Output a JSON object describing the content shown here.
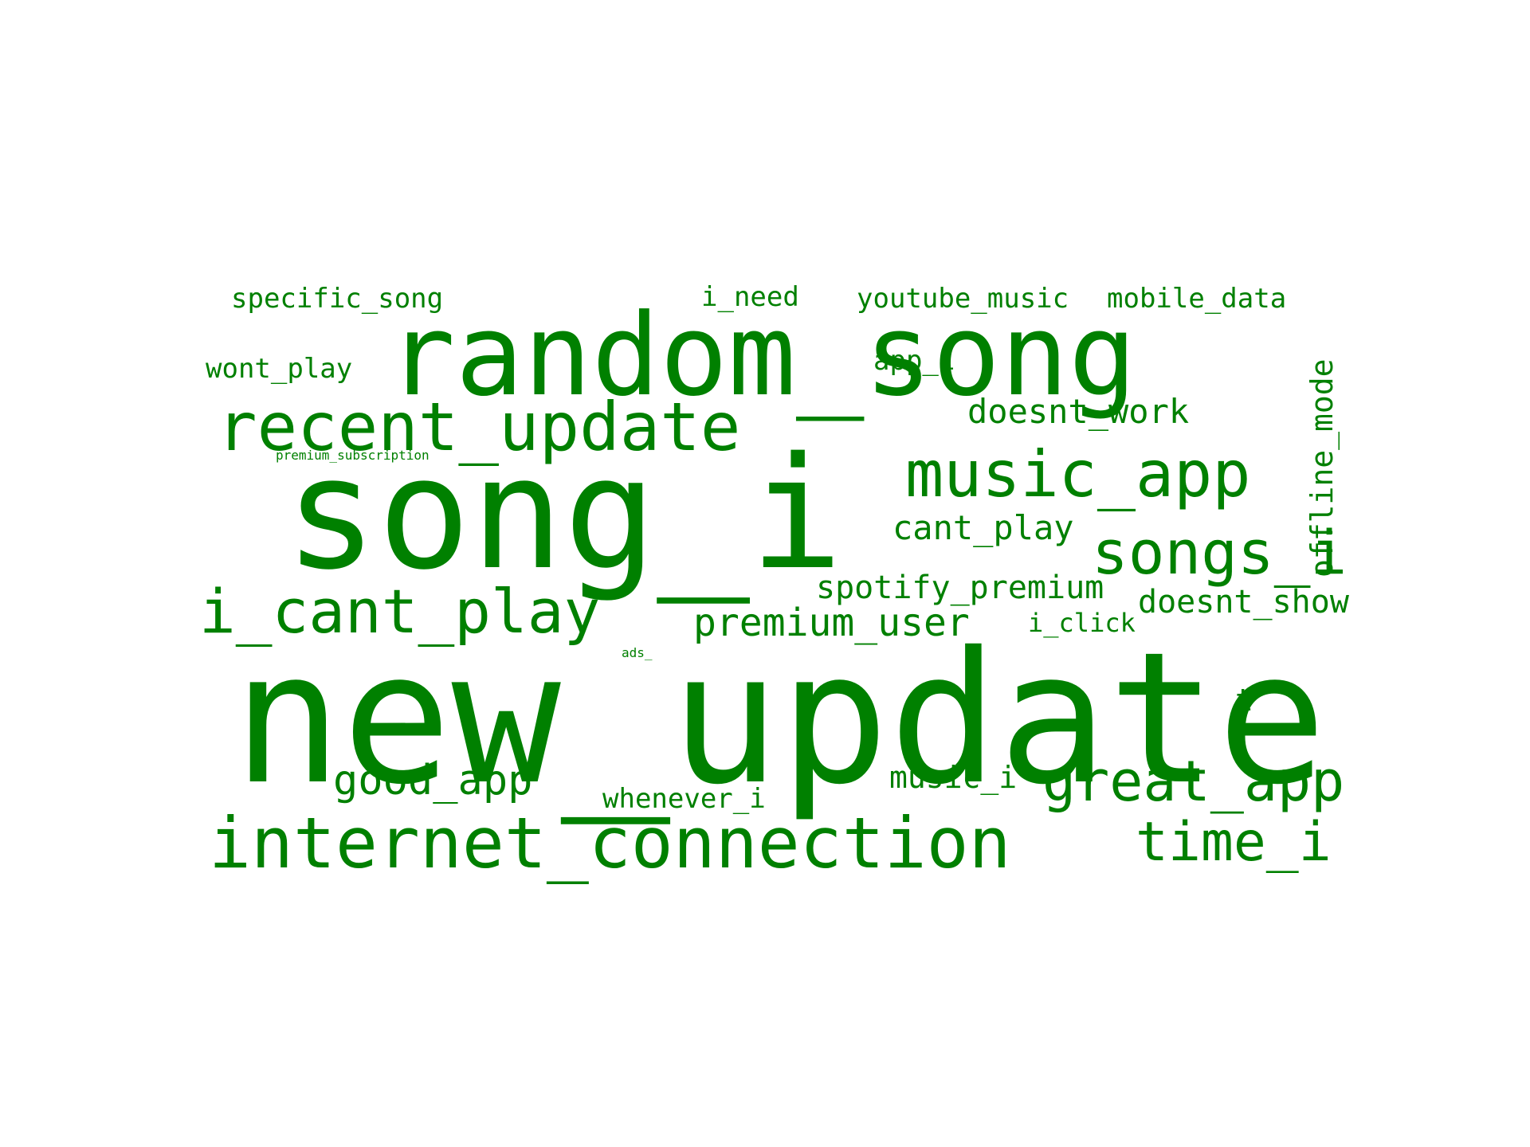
{
  "wordcloud": {
    "color": "#008000",
    "background": "#ffffff",
    "words": [
      {
        "text": "new_update"
      },
      {
        "text": "song_i"
      },
      {
        "text": "random_song"
      },
      {
        "text": "internet_connection"
      },
      {
        "text": "recent_update"
      },
      {
        "text": "music_app"
      },
      {
        "text": "i_cant_play"
      },
      {
        "text": "songs_i"
      },
      {
        "text": "great_app"
      },
      {
        "text": "time_i"
      },
      {
        "text": "good_app"
      },
      {
        "text": "premium_user"
      },
      {
        "text": "offline_mode"
      },
      {
        "text": "spotify_premium"
      },
      {
        "text": "doesnt_work"
      },
      {
        "text": "doesnt_show"
      },
      {
        "text": "cant_play"
      },
      {
        "text": "youtube_music"
      },
      {
        "text": "mobile_data"
      },
      {
        "text": "specific_song"
      },
      {
        "text": "i_need"
      },
      {
        "text": "wont_play"
      },
      {
        "text": "app_i"
      },
      {
        "text": "music_i"
      },
      {
        "text": "whenever_i"
      },
      {
        "text": "i_click"
      },
      {
        "text": "premium_subscription"
      },
      {
        "text": "ads_"
      },
      {
        "text": "t"
      }
    ]
  }
}
